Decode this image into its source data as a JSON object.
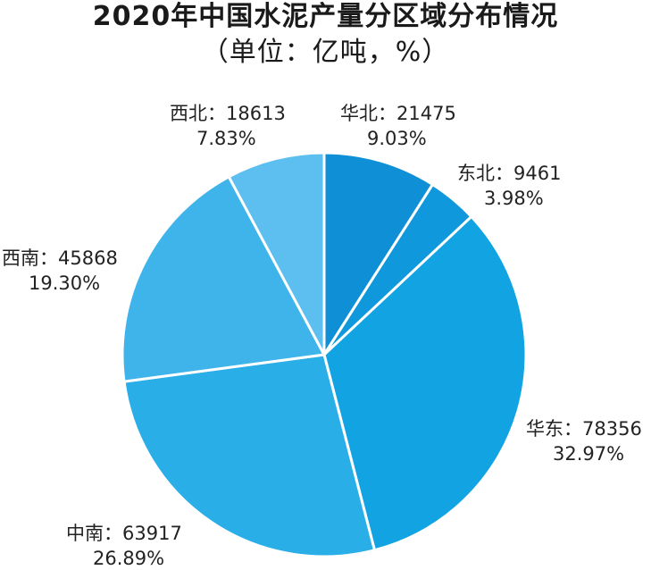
{
  "chart_data": {
    "type": "pie",
    "title": "2020年中国水泥产量分区域分布情况",
    "subtitle": "（单位：亿吨，%）",
    "slices": [
      {
        "name": "华北",
        "value": 21475,
        "percent": "9.03%",
        "color": "#0f8fd6"
      },
      {
        "name": "东北",
        "value": 9461,
        "percent": "3.98%",
        "color": "#0f98db"
      },
      {
        "name": "华东",
        "value": 78356,
        "percent": "32.97%",
        "color": "#12a4e2"
      },
      {
        "name": "中南",
        "value": 63917,
        "percent": "26.89%",
        "color": "#2aaee8"
      },
      {
        "name": "西南",
        "value": 45868,
        "percent": "19.30%",
        "color": "#3fb4ea"
      },
      {
        "name": "西北",
        "value": 18613,
        "percent": "7.83%",
        "color": "#5cbff0"
      }
    ]
  }
}
